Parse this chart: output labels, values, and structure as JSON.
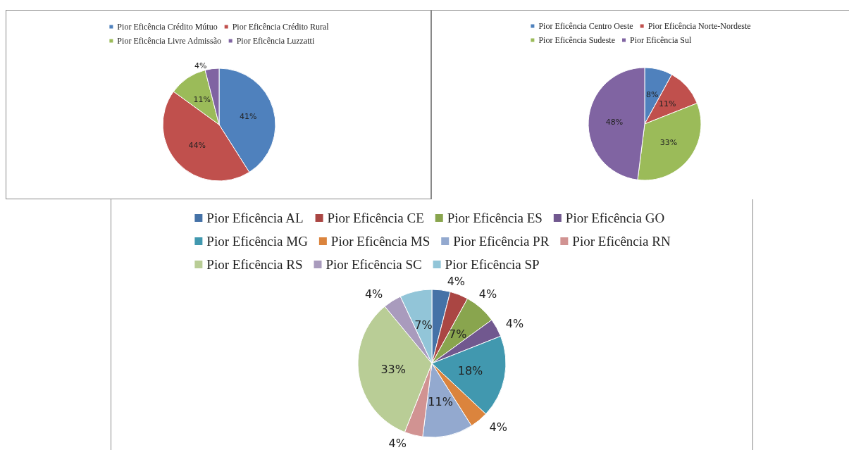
{
  "chart_data": [
    {
      "type": "pie",
      "categories": [
        "Pior Eficência Crédito Mútuo",
        "Pior Eficência Crédito Rural",
        "Pior Eficência Livre Admissão",
        "Pior Eficência Luzzatti"
      ],
      "values": [
        41,
        44,
        11,
        4
      ],
      "value_labels": [
        "41%",
        "44%",
        "11%",
        "4%"
      ],
      "colors": [
        "#4f81bd",
        "#c0504d",
        "#9bbb59",
        "#8064a2"
      ],
      "legend": "top"
    },
    {
      "type": "pie",
      "categories": [
        "Pior Eficência Centro Oeste",
        "Pior Eficência Norte-Nordeste",
        "Pior Eficência Sudeste",
        "Pior Eficência Sul"
      ],
      "values": [
        8,
        11,
        33,
        48
      ],
      "value_labels": [
        "8%",
        "11%",
        "33%",
        "48%"
      ],
      "colors": [
        "#4f81bd",
        "#c0504d",
        "#9bbb59",
        "#8064a2"
      ],
      "legend": "top"
    },
    {
      "type": "pie",
      "categories": [
        "Pior Eficência AL",
        "Pior Eficência CE",
        "Pior Eficência ES",
        "Pior Eficência GO",
        "Pior Eficência MG",
        "Pior Eficência MS",
        "Pior Eficência PR",
        "Pior Eficência RN",
        "Pior Eficência RS",
        "Pior Eficência SC",
        "Pior Eficência SP"
      ],
      "values": [
        4,
        4,
        7,
        4,
        18,
        4,
        11,
        4,
        33,
        4,
        7
      ],
      "value_labels": [
        "4%",
        "4%",
        "7%",
        "4%",
        "18%",
        "4%",
        "11%",
        "4%",
        "33%",
        "4%",
        "7%"
      ],
      "colors": [
        "#4572a7",
        "#aa4643",
        "#89a54e",
        "#71588f",
        "#4198af",
        "#db843d",
        "#93a9cf",
        "#d19392",
        "#b9cd96",
        "#a99bbd",
        "#92c5d8"
      ],
      "legend": "top"
    }
  ]
}
